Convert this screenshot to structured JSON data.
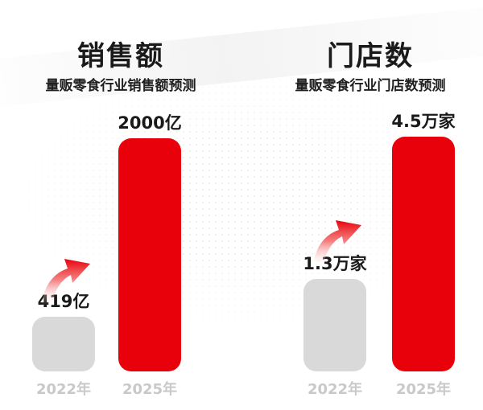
{
  "colors": {
    "accent": "#e8000a",
    "muted_bar": "#d9d9d9",
    "year_text": "#c9c9c9",
    "arrow_red": "#e8000a"
  },
  "chart_data": [
    {
      "type": "bar",
      "title": "销售额",
      "subtitle": "量贩零食行业销售额预测",
      "categories": [
        "2022年",
        "2025年"
      ],
      "values": [
        419,
        2000
      ],
      "data_labels": [
        "419亿",
        "2000亿"
      ],
      "unit": "亿",
      "growth_arrow": "arrow-up-right-icon"
    },
    {
      "type": "bar",
      "title": "门店数",
      "subtitle": "量贩零食行业门店数预测",
      "categories": [
        "2022年",
        "2025年"
      ],
      "values": [
        1.3,
        4.5
      ],
      "data_labels": [
        "1.3万家",
        "4.5万家"
      ],
      "unit": "万家",
      "growth_arrow": "arrow-up-right-icon"
    }
  ]
}
